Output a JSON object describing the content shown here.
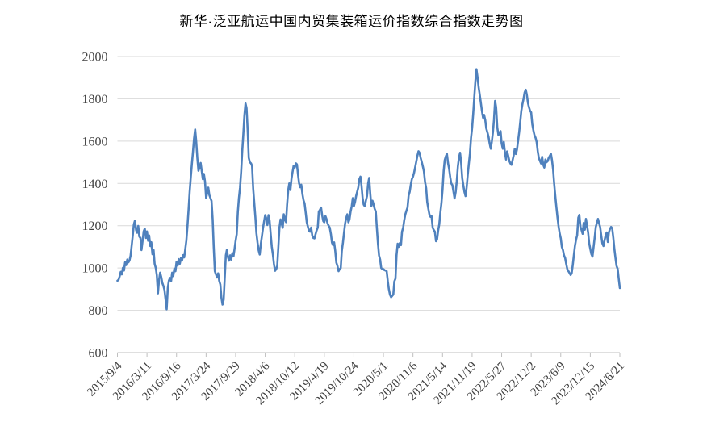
{
  "chart_data": {
    "type": "line",
    "title": "新华·泛亚航运中国内贸集装箱运价指数综合指数走势图",
    "frequency": "weekly",
    "x_start": "2015/9/4",
    "x_end": "2024/6/21",
    "ylim": [
      600,
      2000
    ],
    "y_ticks": [
      600,
      800,
      1000,
      1200,
      1400,
      1600,
      1800,
      2000
    ],
    "x_tick_labels": [
      "2015/9/4",
      "2016/3/11",
      "2016/9/16",
      "2017/3/24",
      "2017/9/29",
      "2018/4/6",
      "2018/10/12",
      "2019/4/19",
      "2019/10/24",
      "2020/5/1",
      "2020/11/6",
      "2021/5/14",
      "2021/11/19",
      "2022/5/27",
      "2022/12/2",
      "2023/6/9",
      "2023/12/15",
      "2024/6/21"
    ],
    "x_tick_weeks": [
      0,
      27,
      54,
      81,
      108,
      135,
      162,
      189,
      216,
      243,
      270,
      297,
      324,
      351,
      378,
      405,
      432,
      459
    ],
    "grid": "horizontal",
    "legend": "none",
    "line_color": "#4F81BD",
    "grid_color": "#D9D9D9",
    "axis_color": "#BFBFBF",
    "label_color": "#404040",
    "title_color": "#000000",
    "background": "#FFFFFF",
    "values": [
      940,
      944,
      960,
      982,
      970,
      1001,
      988,
      1027,
      1014,
      1040,
      1027,
      1035,
      1059,
      1104,
      1154,
      1206,
      1224,
      1180,
      1167,
      1199,
      1149,
      1142,
      1085,
      1129,
      1173,
      1186,
      1142,
      1173,
      1129,
      1154,
      1104,
      1122,
      1065,
      1085,
      1020,
      1000,
      966,
      880,
      940,
      978,
      959,
      930,
      915,
      896,
      850,
      805,
      905,
      940,
      953,
      938,
      978,
      962,
      997,
      985,
      1029,
      1012,
      1042,
      1020,
      1048,
      1035,
      1061,
      1050,
      1090,
      1130,
      1200,
      1280,
      1360,
      1430,
      1490,
      1550,
      1610,
      1655,
      1600,
      1520,
      1460,
      1475,
      1497,
      1460,
      1420,
      1445,
      1410,
      1330,
      1355,
      1380,
      1345,
      1330,
      1317,
      1230,
      1100,
      985,
      970,
      955,
      975,
      940,
      922,
      860,
      827,
      850,
      950,
      1060,
      1086,
      1050,
      1035,
      1060,
      1040,
      1070,
      1055,
      1090,
      1130,
      1160,
      1266,
      1330,
      1380,
      1456,
      1550,
      1634,
      1720,
      1778,
      1756,
      1648,
      1521,
      1500,
      1495,
      1483,
      1375,
      1310,
      1241,
      1165,
      1120,
      1083,
      1064,
      1115,
      1150,
      1190,
      1220,
      1250,
      1235,
      1203,
      1250,
      1225,
      1160,
      1102,
      1064,
      1020,
      987,
      995,
      1010,
      1100,
      1190,
      1230,
      1210,
      1190,
      1254,
      1230,
      1217,
      1300,
      1369,
      1400,
      1369,
      1420,
      1455,
      1483,
      1475,
      1495,
      1490,
      1440,
      1400,
      1382,
      1394,
      1350,
      1320,
      1305,
      1260,
      1216,
      1195,
      1176,
      1172,
      1191,
      1153,
      1142,
      1140,
      1160,
      1178,
      1191,
      1267,
      1275,
      1286,
      1250,
      1222,
      1216,
      1245,
      1232,
      1210,
      1200,
      1190,
      1160,
      1120,
      1108,
      1121,
      1080,
      1026,
      1010,
      985,
      995,
      1000,
      1080,
      1120,
      1165,
      1210,
      1235,
      1254,
      1216,
      1230,
      1267,
      1290,
      1330,
      1292,
      1311,
      1340,
      1360,
      1381,
      1419,
      1432,
      1390,
      1330,
      1300,
      1292,
      1320,
      1340,
      1400,
      1426,
      1350,
      1293,
      1318,
      1300,
      1280,
      1267,
      1190,
      1115,
      1060,
      1040,
      1000,
      995,
      995,
      990,
      988,
      985,
      937,
      900,
      874,
      862,
      868,
      875,
      937,
      950,
      1060,
      1115,
      1100,
      1118,
      1108,
      1172,
      1190,
      1225,
      1254,
      1270,
      1286,
      1343,
      1360,
      1395,
      1420,
      1432,
      1450,
      1477,
      1502,
      1530,
      1552,
      1545,
      1520,
      1502,
      1480,
      1458,
      1407,
      1378,
      1312,
      1280,
      1254,
      1242,
      1245,
      1191,
      1180,
      1172,
      1127,
      1135,
      1178,
      1205,
      1262,
      1305,
      1370,
      1460,
      1510,
      1528,
      1540,
      1496,
      1470,
      1430,
      1400,
      1392,
      1360,
      1329,
      1360,
      1410,
      1480,
      1520,
      1545,
      1500,
      1424,
      1390,
      1360,
      1340,
      1380,
      1440,
      1490,
      1540,
      1615,
      1660,
      1730,
      1806,
      1883,
      1940,
      1900,
      1855,
      1819,
      1780,
      1743,
      1711,
      1724,
      1700,
      1660,
      1641,
      1620,
      1590,
      1564,
      1596,
      1641,
      1700,
      1790,
      1760,
      1666,
      1628,
      1640,
      1647,
      1590,
      1564,
      1596,
      1545,
      1513,
      1551,
      1530,
      1507,
      1494,
      1488,
      1510,
      1532,
      1564,
      1539,
      1560,
      1602,
      1641,
      1692,
      1743,
      1775,
      1800,
      1830,
      1843,
      1820,
      1781,
      1760,
      1743,
      1736,
      1679,
      1650,
      1628,
      1615,
      1596,
      1551,
      1520,
      1507,
      1494,
      1526,
      1488,
      1475,
      1513,
      1500,
      1505,
      1520,
      1530,
      1540,
      1510,
      1465,
      1400,
      1340,
      1290,
      1240,
      1195,
      1165,
      1140,
      1100,
      1085,
      1060,
      1047,
      1020,
      995,
      985,
      977,
      967,
      975,
      1015,
      1060,
      1105,
      1135,
      1155,
      1238,
      1251,
      1194,
      1180,
      1162,
      1213,
      1181,
      1232,
      1200,
      1168,
      1117,
      1090,
      1066,
      1054,
      1100,
      1143,
      1194,
      1213,
      1232,
      1213,
      1194,
      1155,
      1117,
      1104,
      1130,
      1155,
      1168,
      1123,
      1168,
      1185,
      1194,
      1188,
      1143,
      1091,
      1047,
      1010,
      996,
      950,
      905
    ]
  }
}
